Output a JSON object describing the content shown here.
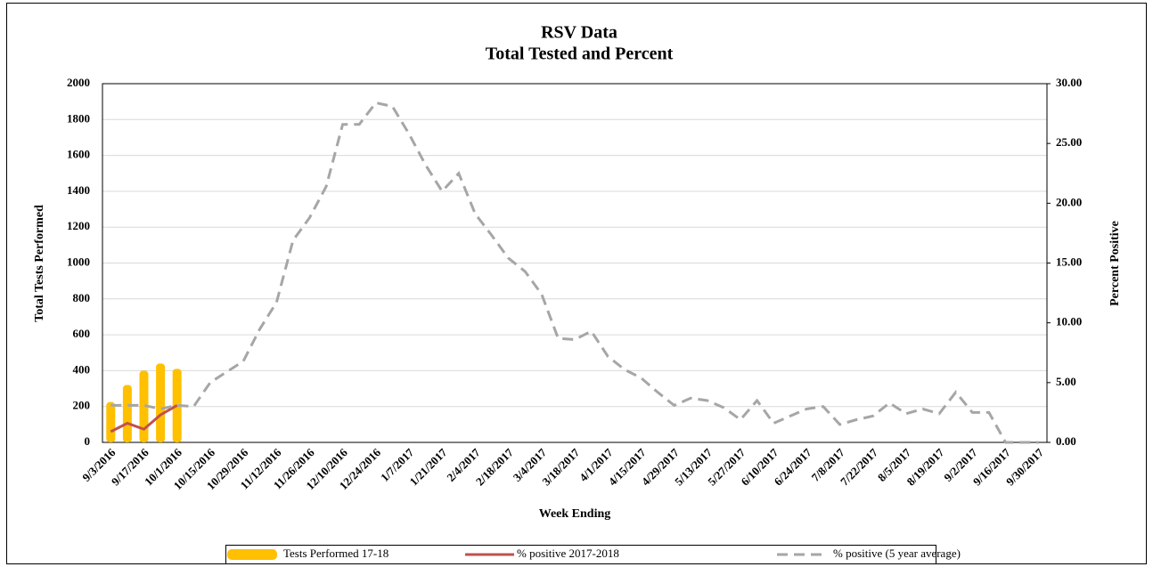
{
  "chart_data": {
    "type": "combo",
    "title": "RSV Data",
    "subtitle": "Total Tested and Percent",
    "x_label": "Week Ending",
    "y_label": "Total  Tests Performed",
    "y2_label": "Percent Positive",
    "categories": [
      "9/3/2016",
      null,
      "9/17/2016",
      null,
      "10/1/2016",
      null,
      "10/15/2016",
      null,
      "10/29/2016",
      null,
      "11/12/2016",
      null,
      "11/26/2016",
      null,
      "12/10/2016",
      null,
      "12/24/2016",
      null,
      "1/7/2017",
      null,
      "1/21/2017",
      null,
      "2/4/2017",
      null,
      "2/18/2017",
      null,
      "3/4/2017",
      null,
      "3/18/2017",
      null,
      "4/1/2017",
      null,
      "4/15/2017",
      null,
      "4/29/2017",
      null,
      "5/13/2017",
      null,
      "5/27/2017",
      null,
      "6/10/2017",
      null,
      "6/24/2017",
      null,
      "7/8/2017",
      null,
      "7/22/2017",
      null,
      "8/5/2017",
      null,
      "8/19/2017",
      null,
      "9/2/2017",
      null,
      "9/16/2017",
      null,
      "9/30/2017"
    ],
    "series": [
      {
        "name": "Tests Performed 17-18",
        "type": "bar",
        "color": "#ffc000",
        "values": [
          225,
          320,
          400,
          440,
          410,
          null,
          null,
          null,
          null,
          null,
          null,
          null,
          null,
          null,
          null,
          null,
          null,
          null,
          null,
          null,
          null,
          null,
          null,
          null,
          null,
          null,
          null,
          null,
          null,
          null,
          null,
          null,
          null,
          null,
          null,
          null,
          null,
          null,
          null,
          null,
          null,
          null,
          null,
          null,
          null,
          null,
          null,
          null,
          null,
          null,
          null,
          null,
          null,
          null,
          null,
          null,
          null
        ]
      },
      {
        "name": "% positive 2017-2018",
        "type": "line",
        "axis": "y2",
        "color": "#c0504d",
        "dashed": false,
        "values": [
          0.9,
          1.6,
          1.1,
          2.3,
          3.1,
          null,
          null,
          null,
          null,
          null,
          null,
          null,
          null,
          null,
          null,
          null,
          null,
          null,
          null,
          null,
          null,
          null,
          null,
          null,
          null,
          null,
          null,
          null,
          null,
          null,
          null,
          null,
          null,
          null,
          null,
          null,
          null,
          null,
          null,
          null,
          null,
          null,
          null,
          null,
          null,
          null,
          null,
          null,
          null,
          null,
          null,
          null,
          null,
          null,
          null,
          null,
          null
        ]
      },
      {
        "name": "% positive (5 year average)",
        "type": "line",
        "axis": "y2",
        "color": "#a6a6a6",
        "dashed": true,
        "values": [
          3.1,
          3.1,
          3.1,
          2.8,
          3.1,
          3.0,
          5.0,
          5.9,
          6.8,
          9.5,
          11.7,
          16.9,
          18.8,
          21.4,
          26.6,
          26.6,
          28.4,
          28.1,
          25.8,
          23.2,
          21.0,
          22.5,
          19.1,
          17.3,
          15.4,
          14.3,
          12.4,
          8.7,
          8.6,
          9.3,
          7.2,
          6.1,
          5.4,
          4.2,
          3.1,
          3.7,
          3.5,
          2.9,
          1.9,
          3.5,
          1.6,
          2.2,
          2.8,
          3.0,
          1.5,
          1.9,
          2.2,
          3.3,
          2.4,
          2.8,
          2.4,
          4.2,
          2.5,
          2.5,
          0,
          0,
          0
        ]
      }
    ],
    "ylim": [
      0,
      2000
    ],
    "yticks": [
      0,
      200,
      400,
      600,
      800,
      1000,
      1200,
      1400,
      1600,
      1800,
      2000
    ],
    "y2lim": [
      0,
      30
    ],
    "y2ticks": [
      {
        "value": 0,
        "label": "0.00"
      },
      {
        "value": 5,
        "label": "5.00"
      },
      {
        "value": 10,
        "label": "10.00"
      },
      {
        "value": 15,
        "label": "15.00"
      },
      {
        "value": 20,
        "label": "20.00"
      },
      {
        "value": 25,
        "label": "25.00"
      },
      {
        "value": 30,
        "label": "30.00"
      }
    ],
    "grid": true,
    "legend": "bottom"
  }
}
